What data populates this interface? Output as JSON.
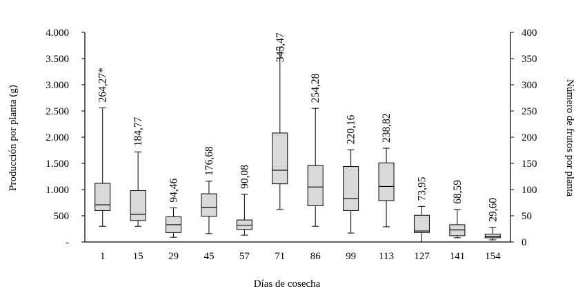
{
  "chart_data": {
    "type": "boxplot",
    "xlabel": "Días de cosecha",
    "ylabel_left": "Producción por planta (g)",
    "ylabel_right": "Número de frutos  por planta",
    "ylim_left": [
      0,
      4000
    ],
    "ylim_right": [
      0,
      400
    ],
    "yticks_left": [
      "-",
      "500",
      "1.000",
      "1.500",
      "2.000",
      "2.500",
      "3.000",
      "3.500",
      "4.000"
    ],
    "yticks_right": [
      "0",
      "50",
      "100",
      "150",
      "200",
      "250",
      "300",
      "350",
      "400"
    ],
    "grid": false,
    "categories": [
      "1",
      "15",
      "29",
      "45",
      "57",
      "71",
      "86",
      "99",
      "113",
      "127",
      "141",
      "154"
    ],
    "boxes": [
      {
        "min": 300,
        "q1": 600,
        "median": 710,
        "q3": 1120,
        "max": 2560
      },
      {
        "min": 300,
        "q1": 410,
        "median": 530,
        "q3": 980,
        "max": 1720
      },
      {
        "min": 90,
        "q1": 180,
        "median": 330,
        "q3": 480,
        "max": 650
      },
      {
        "min": 160,
        "q1": 490,
        "median": 660,
        "q3": 920,
        "max": 1160
      },
      {
        "min": 130,
        "q1": 240,
        "median": 320,
        "q3": 420,
        "max": 910
      },
      {
        "min": 620,
        "q1": 1110,
        "median": 1370,
        "q3": 2080,
        "max": 3720
      },
      {
        "min": 300,
        "q1": 690,
        "median": 1050,
        "q3": 1460,
        "max": 2550
      },
      {
        "min": 170,
        "q1": 600,
        "median": 830,
        "q3": 1440,
        "max": 1760
      },
      {
        "min": 290,
        "q1": 790,
        "median": 1060,
        "q3": 1510,
        "max": 1790
      },
      {
        "min": 0,
        "q1": 180,
        "median": 210,
        "q3": 510,
        "max": 680
      },
      {
        "min": 80,
        "q1": 120,
        "median": 230,
        "q3": 330,
        "max": 620
      },
      {
        "min": 40,
        "q1": 80,
        "median": 100,
        "q3": 150,
        "max": 280
      }
    ],
    "labels": [
      "264,27*",
      "184,77",
      "94,46",
      "176,68",
      "90,08",
      "345,47",
      "254,28",
      "220,16",
      "238,82",
      "73,95",
      "68,59",
      "29,60"
    ],
    "colors": {
      "box_fill": "#d9d9d9",
      "stroke": "#000000"
    }
  }
}
